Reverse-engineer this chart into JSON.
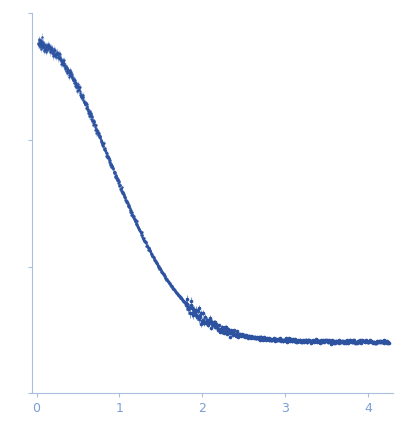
{
  "title": "",
  "xlabel": "",
  "ylabel": "",
  "xlim": [
    -0.05,
    4.3
  ],
  "x_ticks": [
    0,
    1,
    2,
    3,
    4
  ],
  "dot_color": "#2d52a0",
  "error_color": "#7b9fd4",
  "bg_color": "#ffffff",
  "spine_color": "#aabfdf",
  "tick_color": "#aabfdf",
  "tick_label_color": "#7b9fd4",
  "figsize": [
    4.05,
    4.37
  ],
  "dpi": 100
}
